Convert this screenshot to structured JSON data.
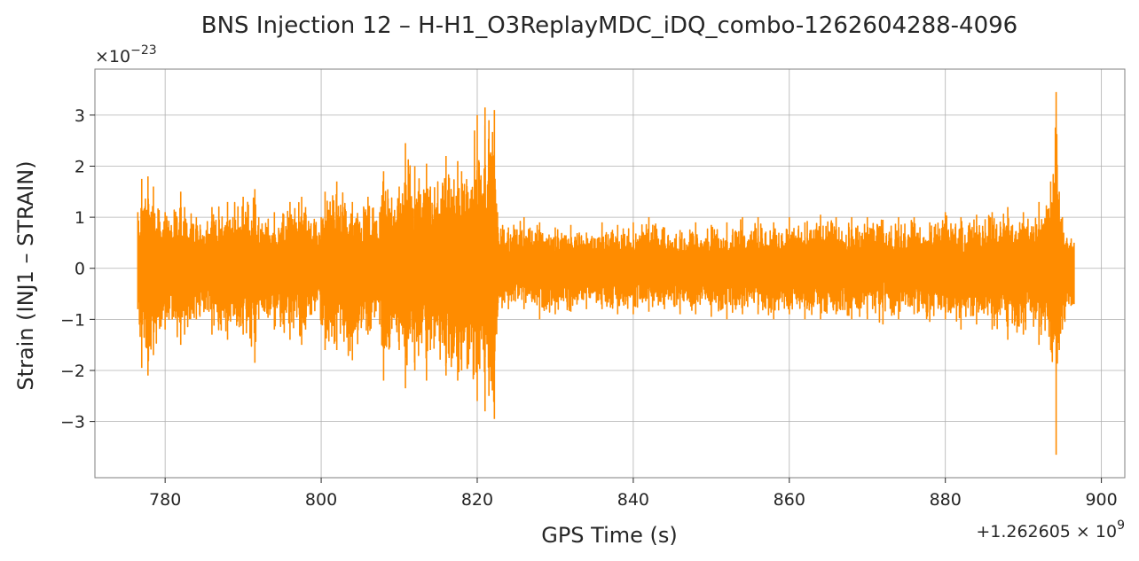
{
  "chart_data": {
    "type": "line",
    "title": "BNS Injection 12 – H-H1_O3ReplayMDC_iDQ_combo-1262604288-4096",
    "xlabel": "GPS Time (s)",
    "ylabel": "Strain (INJ1 – STRAIN)",
    "x_offset_label": "+1.262605 × 10",
    "x_offset_exponent": "9",
    "y_scale_label": "×10",
    "y_scale_exponent": "−23",
    "xlim": [
      771,
      903
    ],
    "ylim": [
      -4.1,
      3.9
    ],
    "xticks": [
      780,
      800,
      820,
      840,
      860,
      880,
      900
    ],
    "xtick_labels": [
      "780",
      "800",
      "820",
      "840",
      "860",
      "880",
      "900"
    ],
    "yticks": [
      -3,
      -2,
      -1,
      0,
      1,
      2,
      3
    ],
    "ytick_labels": [
      "−3",
      "−2",
      "−1",
      "0",
      "1",
      "2",
      "3"
    ],
    "grid": true,
    "line_color": "#ff8c00",
    "series": [
      {
        "x": [
          776.5,
          777,
          777.8,
          778.5,
          780,
          782,
          782.5,
          784,
          786,
          788,
          790,
          791.5,
          792,
          794,
          796,
          797.5,
          798,
          800,
          800.5,
          802,
          804,
          806,
          807.5,
          808,
          810,
          810.8,
          812,
          813.5,
          814,
          816,
          817.5,
          818,
          820,
          821,
          821.5,
          822.2,
          822.6,
          824,
          826,
          828,
          830,
          832,
          834,
          836,
          838,
          840,
          842,
          844,
          846,
          848,
          850,
          852,
          854,
          856,
          858,
          860,
          862,
          864,
          866,
          868,
          870,
          872,
          874,
          876,
          878,
          880,
          882,
          884,
          886,
          888,
          890,
          892,
          893.5,
          894.2,
          894.6,
          895,
          896.5
        ],
        "upper": [
          1.1,
          1.75,
          1.8,
          1.6,
          1.1,
          1.5,
          1.2,
          1.0,
          1.2,
          1.3,
          1.4,
          1.55,
          1.0,
          1.1,
          1.3,
          1.4,
          1.2,
          1.0,
          1.5,
          1.7,
          1.3,
          1.4,
          1.1,
          1.9,
          1.6,
          2.45,
          2.0,
          2.05,
          1.6,
          2.2,
          2.1,
          1.9,
          3.0,
          3.15,
          2.9,
          3.1,
          1.1,
          0.8,
          1.0,
          0.9,
          0.8,
          0.85,
          0.7,
          0.9,
          0.85,
          0.9,
          1.0,
          0.8,
          0.75,
          0.9,
          0.85,
          0.9,
          1.0,
          1.0,
          0.9,
          1.0,
          0.9,
          1.05,
          1.0,
          1.0,
          1.0,
          0.95,
          1.0,
          1.0,
          0.9,
          1.1,
          1.0,
          1.05,
          1.1,
          1.2,
          1.1,
          1.3,
          1.7,
          3.45,
          1.5,
          1.0,
          0.5
        ],
        "lower": [
          -0.8,
          -1.95,
          -2.1,
          -1.7,
          -1.2,
          -1.5,
          -1.3,
          -1.0,
          -1.3,
          -1.4,
          -1.3,
          -1.85,
          -1.0,
          -1.2,
          -1.4,
          -1.5,
          -1.2,
          -1.1,
          -1.6,
          -1.6,
          -1.8,
          -1.3,
          -1.1,
          -2.2,
          -1.6,
          -2.35,
          -2.0,
          -2.2,
          -1.6,
          -2.1,
          -2.2,
          -2.0,
          -2.6,
          -2.8,
          -2.5,
          -2.95,
          -0.95,
          -0.8,
          -0.8,
          -1.0,
          -0.9,
          -0.85,
          -0.8,
          -0.8,
          -0.9,
          -0.9,
          -0.85,
          -0.8,
          -0.9,
          -0.9,
          -0.95,
          -1.0,
          -0.9,
          -0.9,
          -1.0,
          -0.9,
          -1.0,
          -1.0,
          -0.9,
          -1.0,
          -1.0,
          -1.1,
          -1.0,
          -0.9,
          -1.05,
          -1.0,
          -1.2,
          -1.1,
          -1.2,
          -1.4,
          -1.3,
          -1.5,
          -1.6,
          -3.65,
          -1.6,
          -1.2,
          -0.7
        ]
      }
    ]
  }
}
